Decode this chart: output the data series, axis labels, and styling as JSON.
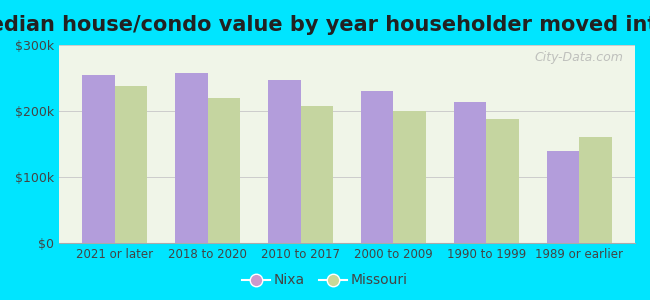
{
  "title": "Median house/condo value by year householder moved into unit",
  "categories": [
    "2021 or later",
    "2018 to 2020",
    "2010 to 2017",
    "2000 to 2009",
    "1990 to 1999",
    "1989 or earlier"
  ],
  "nixa_values": [
    255000,
    258000,
    247000,
    230000,
    213000,
    140000
  ],
  "missouri_values": [
    238000,
    220000,
    207000,
    200000,
    188000,
    160000
  ],
  "nixa_color": "#b39ddb",
  "missouri_color": "#c5d5a0",
  "background_outer": "#00e5ff",
  "background_inner": "#f0f5e8",
  "ylim": [
    0,
    300000
  ],
  "yticks": [
    0,
    100000,
    200000,
    300000
  ],
  "ytick_labels": [
    "$0",
    "$100k",
    "$200k",
    "$300k"
  ],
  "title_fontsize": 15,
  "legend_labels": [
    "Nixa",
    "Missouri"
  ],
  "legend_marker_colors": [
    "#cc99cc",
    "#c8d898"
  ],
  "watermark": "City-Data.com"
}
